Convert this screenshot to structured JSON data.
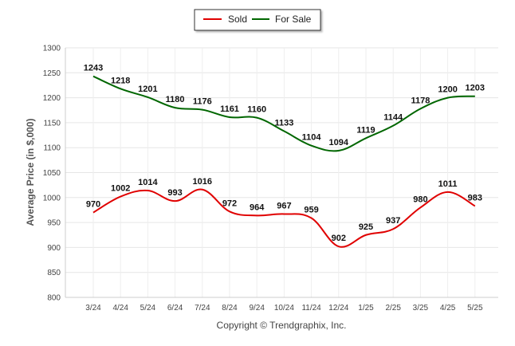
{
  "chart_data": {
    "type": "line",
    "title": "",
    "xlabel": "",
    "ylabel": "Average Price (in $,000)",
    "categories": [
      "3/24",
      "4/24",
      "5/24",
      "6/24",
      "7/24",
      "8/24",
      "9/24",
      "10/24",
      "11/24",
      "12/24",
      "1/25",
      "2/25",
      "3/25",
      "4/25",
      "5/25"
    ],
    "series": [
      {
        "name": "Sold",
        "color": "#e00000",
        "values": [
          970,
          1002,
          1014,
          993,
          1016,
          972,
          964,
          967,
          959,
          902,
          925,
          937,
          980,
          1011,
          983
        ]
      },
      {
        "name": "For Sale",
        "color": "#006600",
        "values": [
          1243,
          1218,
          1201,
          1180,
          1176,
          1161,
          1160,
          1133,
          1104,
          1094,
          1119,
          1144,
          1178,
          1200,
          1203
        ]
      }
    ],
    "ylim": [
      800,
      1300
    ],
    "yticks": [
      800,
      850,
      900,
      950,
      1000,
      1050,
      1100,
      1150,
      1200,
      1250,
      1300
    ],
    "grid": true,
    "legend_position": "top-center"
  },
  "footer": {
    "credit": "Copyright © Trendgraphix, Inc."
  }
}
